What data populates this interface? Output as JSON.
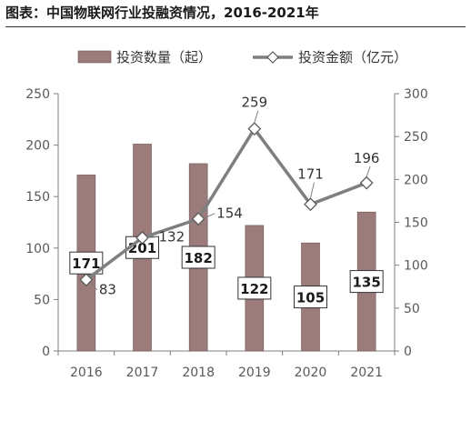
{
  "header": {
    "title": "图表：中国物联网行业投融资情况，2016-2021年"
  },
  "chart_data": {
    "type": "bar+line",
    "categories": [
      "2016",
      "2017",
      "2018",
      "2019",
      "2020",
      "2021"
    ],
    "series": [
      {
        "name": "投资数量（起）",
        "type": "bar",
        "axis": "left",
        "values": [
          171,
          201,
          182,
          122,
          105,
          135
        ],
        "color": "#9c7b7b"
      },
      {
        "name": "投资金额（亿元）",
        "type": "line",
        "axis": "right",
        "values": [
          83,
          132,
          154,
          259,
          171,
          196
        ],
        "color": "#7f7f7f"
      }
    ],
    "y_left": {
      "min": 0,
      "max": 250,
      "ticks": [
        "0",
        "50",
        "100",
        "150",
        "200",
        "250"
      ]
    },
    "y_right": {
      "min": 0,
      "max": 300,
      "ticks": [
        "0",
        "50",
        "100",
        "150",
        "200",
        "250",
        "300"
      ]
    },
    "legend_position": "top",
    "grid": false
  }
}
